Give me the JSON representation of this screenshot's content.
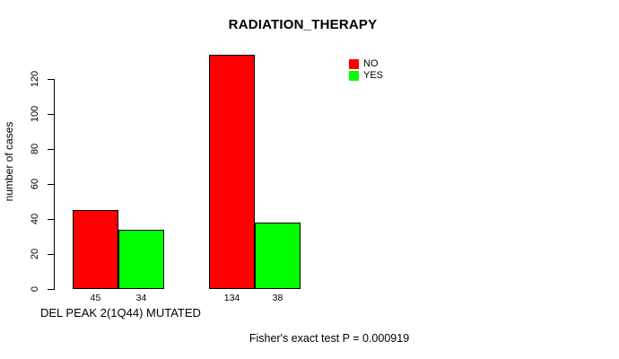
{
  "chart_data": {
    "type": "bar",
    "title": "RADIATION_THERAPY",
    "ylabel": "number of cases",
    "xlabel": "DEL PEAK 2(1Q44) MUTATED",
    "footnote": "Fisher's exact test P = 0.000919",
    "series": [
      {
        "name": "NO",
        "color": "#ff0000",
        "values": [
          45,
          134
        ]
      },
      {
        "name": "YES",
        "color": "#00ff00",
        "values": [
          34,
          38
        ]
      }
    ],
    "bar_value_labels": [
      [
        "45",
        "134"
      ],
      [
        "34",
        "38"
      ]
    ],
    "yticks": [
      0,
      20,
      40,
      60,
      80,
      100,
      120
    ],
    "ylim": [
      0,
      135
    ],
    "grid": false,
    "legend_position": "top-right",
    "colors": {
      "no": "#ff0000",
      "yes": "#00ff00",
      "axis": "#000000",
      "background": "#ffffff"
    }
  }
}
